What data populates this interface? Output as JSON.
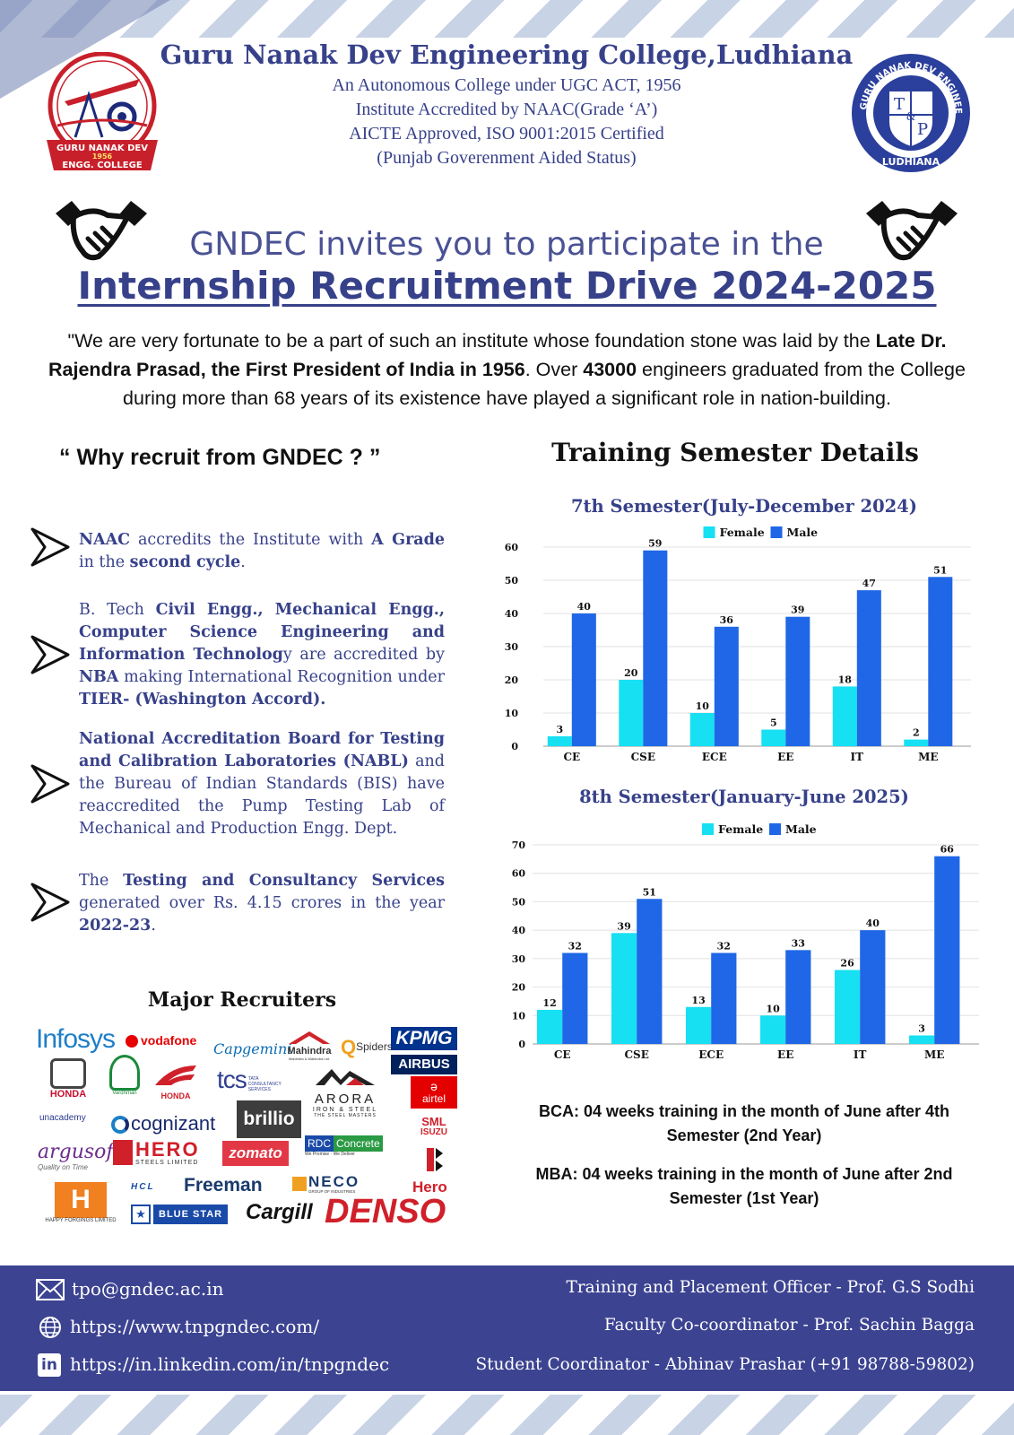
{
  "header": {
    "college_name": "Guru Nanak Dev Engineering College,Ludhiana",
    "line1": "An Autonomous College under UGC ACT, 1956",
    "line2": "Institute Accredited by NAAC(Grade ‘A’)",
    "line3": "AICTE Approved, ISO 9001:2015 Certified",
    "line4": "(Punjab Goverenment Aided Status)",
    "left_logo": {
      "line1": "GURU NANAK DEV",
      "year": "1956",
      "line2": "ENGG. COLLEGE"
    },
    "right_logo": {
      "ring_text": "GURU NANAK DEV ENGINEERING COLLEGE",
      "bottom": "LUDHIANA",
      "t": "T",
      "amp": "&",
      "p": "P"
    }
  },
  "invite": {
    "line1": "GNDEC invites you to participate in the",
    "line2": "Internship Recruitment Drive 2024-2025"
  },
  "quote": {
    "part1": "\"We are very fortunate to be a part of such an institute whose foundation stone was laid by the ",
    "bold1": "Late Dr. Rajendra Prasad, the First President of India in 1956",
    "part2": ". Over ",
    "bold2": "43000",
    "part3": " engineers graduated from the College during more than 68 years of its existence have played a significant role in nation-building."
  },
  "why": {
    "title": "“ Why recruit from GNDEC  ? ”",
    "b1": {
      "t1": "NAAC",
      "t2": " accredits the Institute with ",
      "t3": "A Grade",
      "t4": " in the ",
      "t5": "second cycle",
      "t6": "."
    },
    "b2": {
      "t1": "B. Tech ",
      "t2": "Civil Engg., Mechanical Engg., Computer Science Engineering and Information Technolog",
      "t3": "y are accredited by ",
      "t4": "NBA",
      "t5": " making International Recognition under ",
      "t6": "TIER- (Washington Accord)."
    },
    "b3": {
      "t1": "National Accreditation Board for Testing and Calibration Laboratories (NABL)",
      "t2": " and the Bureau of Indian Standards (BIS) have reaccredited the Pump Testing Lab of Mechanical and Production Engg. Dept."
    },
    "b4": {
      "t1": "The ",
      "t2": "Testing and Consultancy Services",
      "t3": " generated over Rs. 4.15 crores in the year ",
      "t4": "2022-23",
      "t5": "."
    }
  },
  "recruiters": {
    "title": "Major Recruiters",
    "logos": {
      "infosys": "Infosys",
      "vodafone": "vodafone",
      "capgemini": "Capgemini",
      "mahindra": "Mahindra",
      "mahindra_sub": "Mahindra & Mahindra Ltd.",
      "spiders": "Spiders",
      "kpmg": "KPMG",
      "airbus": "AIRBUS",
      "honda1": "HONDA",
      "vardhman": "Vardhman",
      "honda2": "HONDA",
      "tcs": "tcs",
      "tcs_sub1": "TATA",
      "tcs_sub2": "CONSULTANCY",
      "tcs_sub3": "SERVICES",
      "arora": "ARORA",
      "arora_sub1": "IRON & STEEL",
      "arora_sub2": "THE STEEL MASTERS",
      "airtel": "airtel",
      "unacademy": "unacademy",
      "cognizant": "cognizant",
      "brillio": "brillio",
      "rdc1": "RDC",
      "rdc2": "Concrete",
      "rdc_sub1": "We Promise",
      "rdc_sub2": "We Deliver",
      "sml1": "SML",
      "sml2": "ISUZU",
      "argusoft": "argusoft",
      "argusoft_sub": "Quality on Time",
      "hero_steels": "HERO",
      "hero_steels_sub": "STEELS LIMITED",
      "zomato": "zomato",
      "happy_forgings": "HAPPY FORGINGS LIMITED",
      "hcl": "HCL",
      "freeman": "Freeman",
      "neco": "NECO",
      "neco_sub": "GROUP OF INDUSTRIES",
      "hero": "Hero",
      "bluestar": "BLUE STAR",
      "cargill": "Cargill",
      "denso": "DENSO"
    }
  },
  "training": {
    "title": "Training Semester Details",
    "bca": "BCA:  04 weeks training in the month of June after 4th Semester (2nd Year)",
    "mba": "MBA: 04 weeks training in the month of June after  2nd Semester (1st Year)"
  },
  "chart_data": [
    {
      "type": "bar",
      "title": "7th Semester(July-December 2024)",
      "categories": [
        "CE",
        "CSE",
        "ECE",
        "EE",
        "IT",
        "ME"
      ],
      "series": [
        {
          "name": "Female",
          "values": [
            3,
            20,
            10,
            5,
            18,
            2
          ],
          "color": "#16e0f2"
        },
        {
          "name": "Male",
          "values": [
            40,
            59,
            36,
            39,
            47,
            51
          ],
          "color": "#1f67e6"
        }
      ],
      "ylim": [
        0,
        60
      ],
      "yticks": [
        0,
        10,
        20,
        30,
        40,
        50,
        60
      ],
      "grid": true,
      "legend": "top"
    },
    {
      "type": "bar",
      "title": "8th Semester(January-June 2025)",
      "categories": [
        "CE",
        "CSE",
        "ECE",
        "EE",
        "IT",
        "ME"
      ],
      "series": [
        {
          "name": "Female",
          "values": [
            12,
            39,
            13,
            10,
            26,
            3
          ],
          "color": "#16e0f2"
        },
        {
          "name": "Male",
          "values": [
            32,
            51,
            32,
            33,
            40,
            66
          ],
          "color": "#1f67e6"
        }
      ],
      "ylim": [
        0,
        70
      ],
      "yticks": [
        0,
        10,
        20,
        30,
        40,
        50,
        60,
        70
      ],
      "grid": true,
      "legend": "top"
    }
  ],
  "footer": {
    "email": "tpo@gndec.ac.in",
    "website": "https://www.tnpgndec.com/",
    "linkedin": "https://in.linkedin.com/in/tnpgndec",
    "linkedin_badge": "in",
    "tpo": "Training and Placement Officer - Prof. G.S Sodhi",
    "faculty": "Faculty Co-coordinator - Prof. Sachin Bagga",
    "student": "Student Coordinator - Abhinav Prashar (+91 98788-59802)"
  }
}
